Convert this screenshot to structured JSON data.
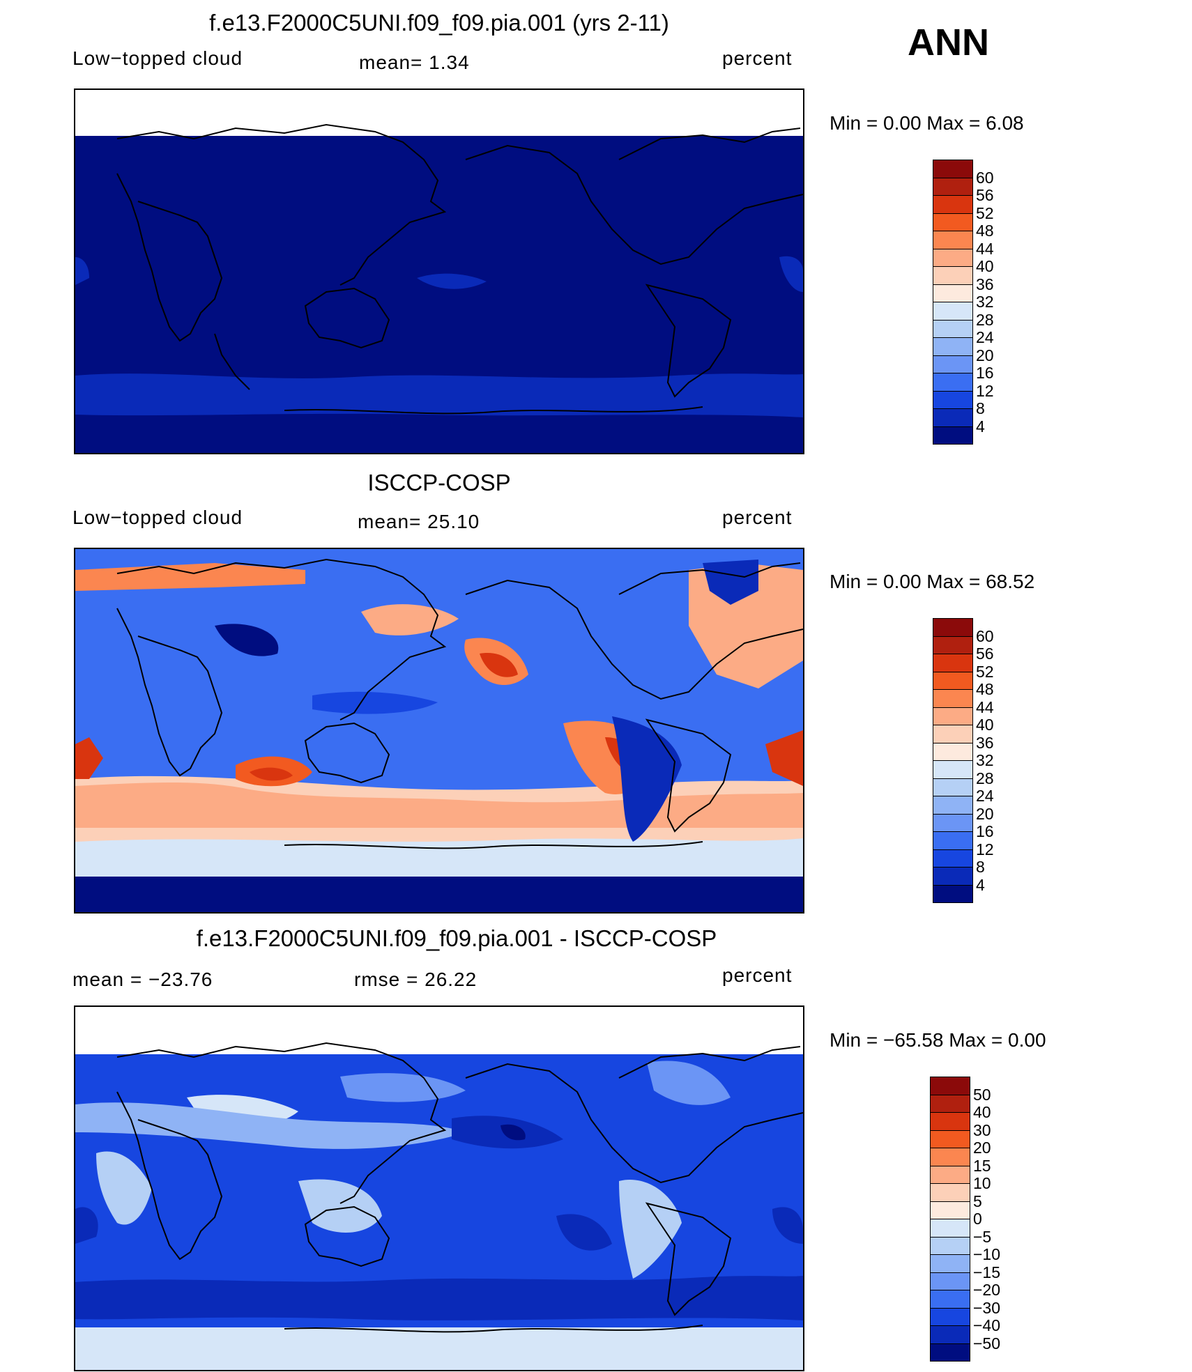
{
  "season": "ANN",
  "panels": [
    {
      "id": "model",
      "title": "f.e13.F2000C5UNI.f09_f09.pia.001 (yrs 2-11)",
      "left_label": "Low−topped  cloud",
      "center_label": "mean=    1.34",
      "right_label": "percent",
      "minmax": "Min  =     0.00  Max  =     6.08",
      "colorbar_labels": [
        "60",
        "56",
        "52",
        "48",
        "44",
        "40",
        "36",
        "32",
        "28",
        "24",
        "20",
        "16",
        "12",
        "8",
        "4"
      ],
      "colorbar_colors": [
        "#8b0a0a",
        "#b0200f",
        "#d9350f",
        "#f25a20",
        "#fb8650",
        "#fcab85",
        "#fcd0b8",
        "#fdeade",
        "#d6e6f8",
        "#b5d0f5",
        "#8fb3f5",
        "#6b95f5",
        "#3a6ef2",
        "#1746e0",
        "#0a2ab8",
        "#000d80"
      ]
    },
    {
      "id": "obs",
      "title": "ISCCP-COSP",
      "left_label": "Low−topped  cloud",
      "center_label": "mean=   25.10",
      "right_label": "percent",
      "minmax": "Min  =     0.00  Max  =    68.52",
      "colorbar_labels": [
        "60",
        "56",
        "52",
        "48",
        "44",
        "40",
        "36",
        "32",
        "28",
        "24",
        "20",
        "16",
        "12",
        "8",
        "4"
      ],
      "colorbar_colors": [
        "#8b0a0a",
        "#b0200f",
        "#d9350f",
        "#f25a20",
        "#fb8650",
        "#fcab85",
        "#fcd0b8",
        "#fdeade",
        "#d6e6f8",
        "#b5d0f5",
        "#8fb3f5",
        "#6b95f5",
        "#3a6ef2",
        "#1746e0",
        "#0a2ab8",
        "#000d80"
      ]
    },
    {
      "id": "diff",
      "title": "f.e13.F2000C5UNI.f09_f09.pia.001 - ISCCP-COSP",
      "left_label": "mean  =  −23.76",
      "center_label": "rmse  =    26.22",
      "right_label": "percent",
      "minmax": "Min  =  −65.58  Max  =     0.00",
      "colorbar_labels": [
        "50",
        "40",
        "30",
        "20",
        "15",
        "10",
        "5",
        "0",
        "−5",
        "−10",
        "−15",
        "−20",
        "−30",
        "−40",
        "−50"
      ],
      "colorbar_colors": [
        "#8b0a0a",
        "#b0200f",
        "#d9350f",
        "#f25a20",
        "#fb8650",
        "#fcab85",
        "#fcd0b8",
        "#fdeade",
        "#d6e6f8",
        "#b5d0f5",
        "#8fb3f5",
        "#6b95f5",
        "#3a6ef2",
        "#1746e0",
        "#0a2ab8",
        "#000d80"
      ]
    }
  ]
}
